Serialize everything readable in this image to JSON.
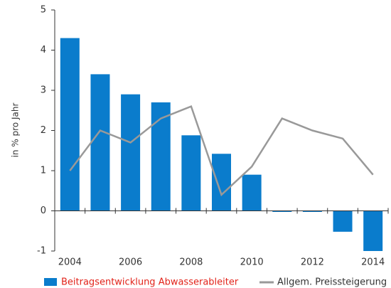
{
  "chart_data": {
    "type": "bar",
    "y_axis_label": "in  % pro Jahr",
    "categories": [
      "2004",
      null,
      "2006",
      null,
      "2008",
      null,
      "2010",
      null,
      "2012",
      null,
      "2014"
    ],
    "series": [
      {
        "name": "Beitragsentwicklung Abwasserableiter",
        "type": "bar",
        "color": "#0a7ccc",
        "label_color": "#e2231a",
        "values": [
          4.3,
          3.4,
          2.9,
          2.7,
          1.88,
          1.42,
          0.9,
          -0.02,
          -0.02,
          -0.52,
          -1.0
        ]
      },
      {
        "name": "Allgem. Preissteigerung",
        "type": "line",
        "color": "#999999",
        "label_color": "#333333",
        "values": [
          1.0,
          2.0,
          1.7,
          2.3,
          2.6,
          0.4,
          1.1,
          2.3,
          2.0,
          1.8,
          0.9
        ]
      }
    ],
    "ylim": [
      -1,
      5
    ],
    "yticks": [
      -1,
      0,
      1,
      2,
      3,
      4,
      5
    ],
    "legend": "bottom"
  }
}
